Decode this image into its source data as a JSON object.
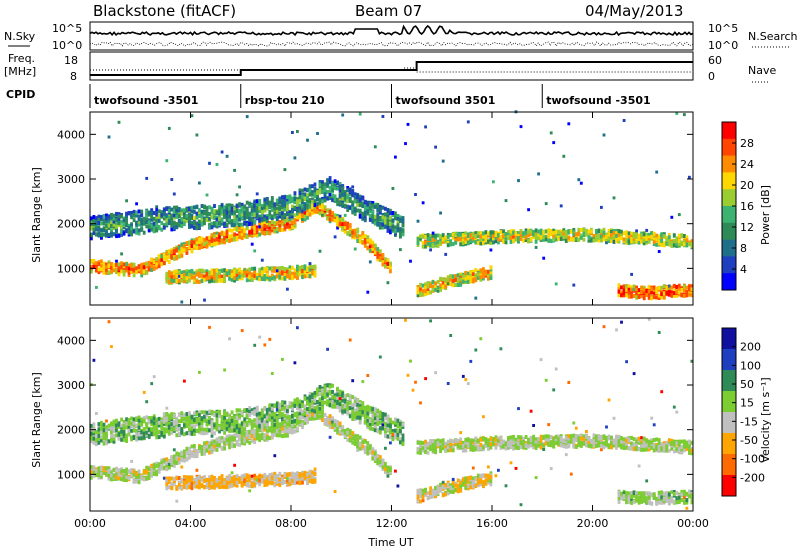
{
  "header": {
    "radar": "Blackstone (fitACF)",
    "beam": "Beam 07",
    "date": "04/May/2013"
  },
  "top_panels": {
    "nsky_label": "N.Sky",
    "nsearch_label": "N.Search",
    "noise_ticks": [
      "10^5",
      "10^0"
    ],
    "freq_label_line1": "Freq.",
    "freq_label_line2": "[MHz]",
    "freq_ticks": [
      "18",
      "8"
    ],
    "nave_label": "Nave",
    "nave_ticks": [
      "60",
      "0"
    ],
    "cpid_label": "CPID",
    "cpid_segments": [
      {
        "start_h": 0,
        "end_h": 6,
        "name": "twofsound -3501"
      },
      {
        "start_h": 6,
        "end_h": 12,
        "name": "rbsp-tou 210"
      },
      {
        "start_h": 12,
        "end_h": 18,
        "name": "twofsound 3501"
      },
      {
        "start_h": 18,
        "end_h": 24,
        "name": "twofsound -3501"
      }
    ]
  },
  "axes": {
    "xlabel": "Time UT",
    "x_ticks": [
      "00:00",
      "04:00",
      "08:00",
      "12:00",
      "16:00",
      "20:00",
      "00:00"
    ],
    "ylabel": "Slant Range [km]",
    "y_ticks": [
      "1000",
      "2000",
      "3000",
      "4000"
    ]
  },
  "power_colorbar": {
    "label": "Power [dB]",
    "ticks": [
      "28",
      "24",
      "20",
      "16",
      "12",
      "8",
      "4"
    ],
    "colors": [
      "#ff0000",
      "#ff4500",
      "#ff8c00",
      "#ffd700",
      "#9acd32",
      "#3cb371",
      "#2e8b57",
      "#1f6f8b",
      "#1e3fbf",
      "#0000ff"
    ]
  },
  "velocity_colorbar": {
    "label": "Velocity [m s⁻¹]",
    "ticks": [
      "200",
      "100",
      "50",
      "15",
      "-15",
      "-50",
      "-100",
      "-200"
    ],
    "colors": [
      "#1010a0",
      "#1e40c0",
      "#2e8b57",
      "#7ccd32",
      "#c0c0c0",
      "#ffa500",
      "#ff6a00",
      "#ff0000"
    ]
  },
  "chart_data": {
    "type": "heatmap",
    "title": "Blackstone (fitACF)",
    "xlabel": "Time UT",
    "ylabel": "Slant Range [km]",
    "xlim_hours": [
      0,
      24
    ],
    "ylim_km": [
      180,
      4500
    ],
    "series": [
      {
        "name": "Power [dB]",
        "range_limits": [
          4,
          28
        ]
      },
      {
        "name": "Velocity [m s⁻¹]",
        "range_limits": [
          -200,
          200
        ]
      }
    ],
    "bands": [
      {
        "t": [
          0,
          2,
          4,
          6,
          8,
          9,
          10,
          11,
          12
        ],
        "r": [
          1050,
          950,
          1500,
          1800,
          2000,
          2400,
          2000,
          1600,
          1000
        ],
        "power": 24,
        "velocity": -10
      },
      {
        "t": [
          0,
          3,
          6,
          8,
          9.5,
          11,
          12.5
        ],
        "r": [
          1900,
          2100,
          2200,
          2400,
          2800,
          2300,
          1900
        ],
        "power": 14,
        "velocity": 30
      },
      {
        "t": [
          3,
          6,
          8,
          9
        ],
        "r": [
          800,
          850,
          900,
          950
        ],
        "power": 22,
        "velocity": -60
      },
      {
        "t": [
          13,
          16,
          20,
          24
        ],
        "r": [
          1600,
          1700,
          1750,
          1600
        ],
        "power": 20,
        "velocity": -5
      },
      {
        "t": [
          13,
          14,
          15,
          16
        ],
        "r": [
          500,
          650,
          800,
          900
        ],
        "power": 22,
        "velocity": -40
      },
      {
        "t": [
          21,
          22,
          24
        ],
        "r": [
          500,
          450,
          500
        ],
        "power": 26,
        "velocity": 10
      }
    ]
  }
}
